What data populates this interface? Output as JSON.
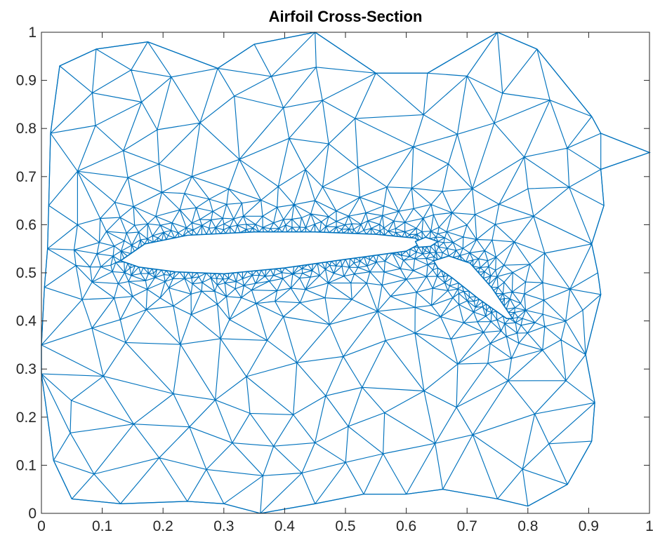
{
  "chart_data": {
    "type": "mesh",
    "title": "Airfoil Cross-Section",
    "xlabel": "",
    "ylabel": "",
    "xlim": [
      0,
      1
    ],
    "ylim": [
      0,
      1
    ],
    "xticks": [
      0,
      0.1,
      0.2,
      0.3,
      0.4,
      0.5,
      0.6,
      0.7,
      0.8,
      0.9,
      1
    ],
    "xtick_labels": [
      "0",
      "0.1",
      "0.2",
      "0.3",
      "0.4",
      "0.5",
      "0.6",
      "0.7",
      "0.8",
      "0.9",
      "1"
    ],
    "yticks": [
      0,
      0.1,
      0.2,
      0.3,
      0.4,
      0.5,
      0.6,
      0.7,
      0.8,
      0.9,
      1
    ],
    "ytick_labels": [
      "0",
      "0.1",
      "0.2",
      "0.3",
      "0.4",
      "0.5",
      "0.6",
      "0.7",
      "0.8",
      "0.9",
      "1"
    ],
    "grid": false,
    "box": true,
    "mesh_color": "#0072BD",
    "boundary": [
      [
        0.0,
        0.29
      ],
      [
        0.0,
        0.35
      ],
      [
        0.005,
        0.47
      ],
      [
        0.01,
        0.55
      ],
      [
        0.012,
        0.64
      ],
      [
        0.015,
        0.79
      ],
      [
        0.03,
        0.93
      ],
      [
        0.09,
        0.965
      ],
      [
        0.175,
        0.98
      ],
      [
        0.29,
        0.925
      ],
      [
        0.35,
        0.975
      ],
      [
        0.45,
        1.0
      ],
      [
        0.55,
        0.915
      ],
      [
        0.635,
        0.915
      ],
      [
        0.75,
        1.0
      ],
      [
        0.815,
        0.965
      ],
      [
        0.905,
        0.825
      ],
      [
        0.92,
        0.79
      ],
      [
        1.0,
        0.75
      ],
      [
        0.92,
        0.715
      ],
      [
        0.925,
        0.64
      ],
      [
        0.905,
        0.56
      ],
      [
        0.915,
        0.5
      ],
      [
        0.92,
        0.455
      ],
      [
        0.895,
        0.33
      ],
      [
        0.91,
        0.23
      ],
      [
        0.905,
        0.15
      ],
      [
        0.865,
        0.06
      ],
      [
        0.8,
        0.015
      ],
      [
        0.75,
        0.03
      ],
      [
        0.66,
        0.05
      ],
      [
        0.6,
        0.04
      ],
      [
        0.53,
        0.04
      ],
      [
        0.45,
        0.02
      ],
      [
        0.36,
        0.0
      ],
      [
        0.3,
        0.02
      ],
      [
        0.24,
        0.025
      ],
      [
        0.13,
        0.02
      ],
      [
        0.05,
        0.03
      ],
      [
        0.02,
        0.11
      ]
    ],
    "main_airfoil": [
      [
        0.13,
        0.525
      ],
      [
        0.17,
        0.56
      ],
      [
        0.24,
        0.578
      ],
      [
        0.35,
        0.585
      ],
      [
        0.45,
        0.585
      ],
      [
        0.55,
        0.58
      ],
      [
        0.615,
        0.572
      ],
      [
        0.625,
        0.562
      ],
      [
        0.6,
        0.545
      ],
      [
        0.5,
        0.528
      ],
      [
        0.4,
        0.51
      ],
      [
        0.3,
        0.498
      ],
      [
        0.22,
        0.502
      ],
      [
        0.16,
        0.512
      ]
    ],
    "slat": [
      [
        0.615,
        0.565
      ],
      [
        0.632,
        0.574
      ],
      [
        0.652,
        0.565
      ],
      [
        0.64,
        0.555
      ],
      [
        0.62,
        0.553
      ]
    ],
    "flap": [
      [
        0.645,
        0.525
      ],
      [
        0.67,
        0.535
      ],
      [
        0.705,
        0.52
      ],
      [
        0.74,
        0.47
      ],
      [
        0.775,
        0.405
      ],
      [
        0.765,
        0.405
      ],
      [
        0.72,
        0.445
      ],
      [
        0.675,
        0.49
      ],
      [
        0.652,
        0.51
      ]
    ]
  }
}
